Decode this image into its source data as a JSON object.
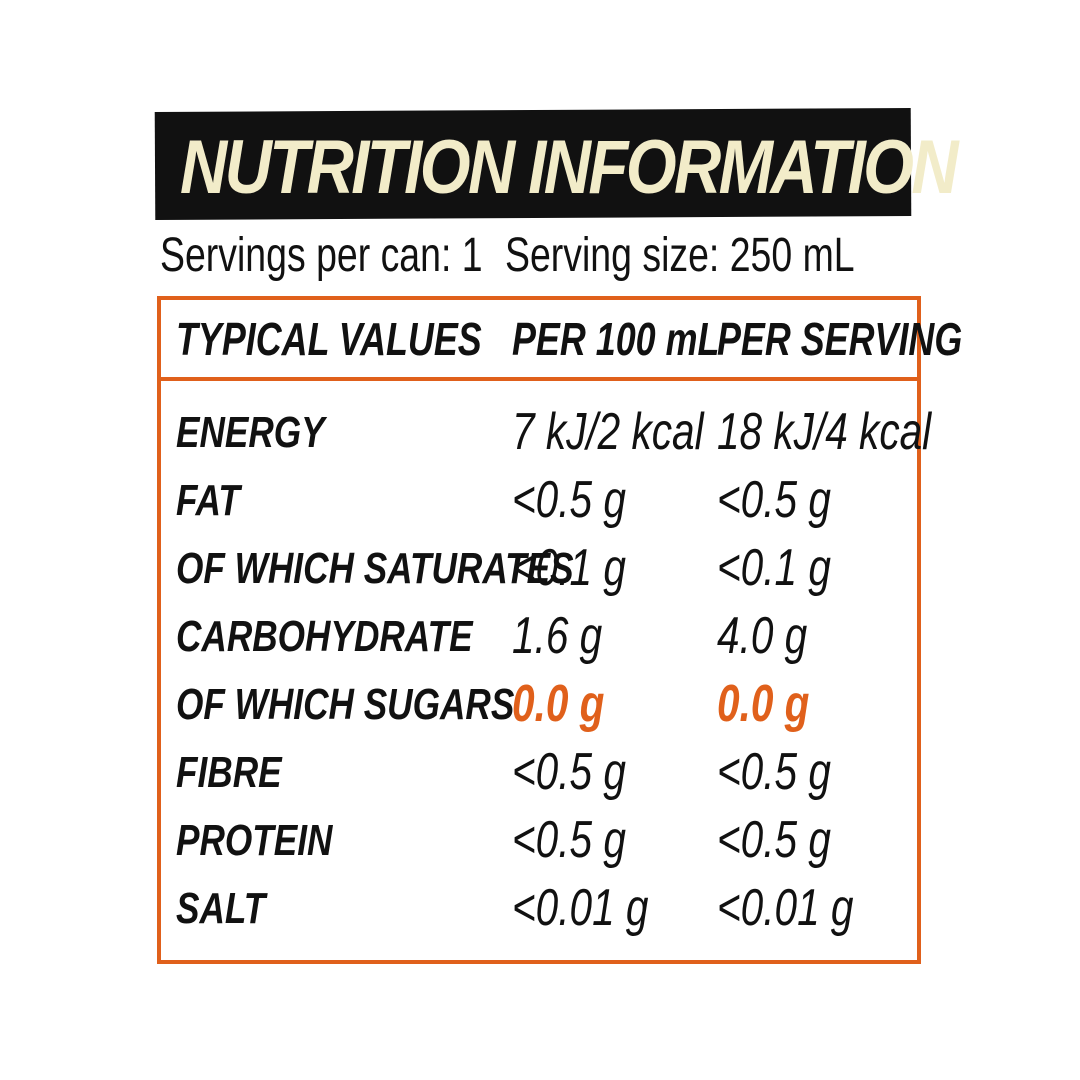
{
  "header": {
    "title": "NUTRITION INFORMATION",
    "servings_per_can": "Servings per can: 1",
    "serving_size": "Serving size: 250 mL"
  },
  "table": {
    "columns": [
      "TYPICAL VALUES",
      "PER 100 mL",
      "PER SERVING"
    ],
    "rows": [
      [
        "ENERGY",
        "7 kJ/2 kcal",
        "18 kJ/4 kcal"
      ],
      [
        "FAT",
        "<0.5 g",
        "<0.5 g"
      ],
      [
        "OF WHICH SATURATES",
        "<0.1 g",
        "<0.1 g"
      ],
      [
        "CARBOHYDRATE",
        "1.6 g",
        "4.0 g"
      ],
      [
        "OF WHICH SUGARS",
        "0.0 g",
        "0.0 g"
      ],
      [
        "FIBRE",
        "<0.5 g",
        "<0.5 g"
      ],
      [
        "PROTEIN",
        "<0.5 g",
        "<0.5 g"
      ],
      [
        "SALT",
        "<0.01 g",
        "<0.01 g"
      ]
    ]
  }
}
